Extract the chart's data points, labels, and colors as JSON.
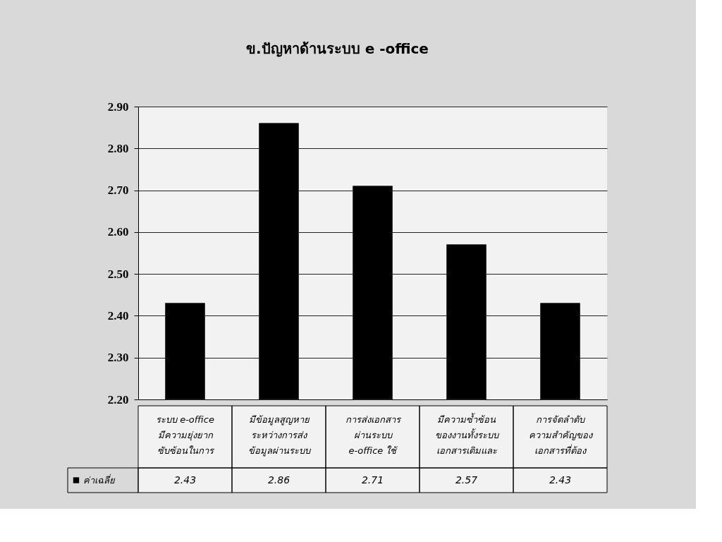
{
  "chart_data": {
    "type": "bar",
    "title": "ข.ปัญหาด้านระบบ e -office",
    "categories": [
      "ระบบ e-office\nมีความยุ่งยาก\nซับซ้อนในการ",
      "มีข้อมูลสูญหาย\nระหว่างการส่ง\nข้อมูลผ่านระบบ",
      "การส่งเอกสาร\nผ่านระบบ\ne-office ใช้",
      "มีความซ้ำซ้อน\nของงานทั้งระบบ\nเอกสารเดิมและ",
      "การจัดลำดับ\nความสำคัญของ\nเอกสารที่ต้อง"
    ],
    "series": [
      {
        "name": "ค่าเฉลี่ย",
        "color": "#000000",
        "values": [
          2.43,
          2.86,
          2.71,
          2.57,
          2.43
        ]
      }
    ],
    "ylim": [
      2.2,
      2.9
    ],
    "yticks": [
      {
        "value": 2.2,
        "label": "2.20"
      },
      {
        "value": 2.3,
        "label": "2.30"
      },
      {
        "value": 2.4,
        "label": "2.40"
      },
      {
        "value": 2.5,
        "label": "2.50"
      },
      {
        "value": 2.6,
        "label": "2.60"
      },
      {
        "value": 2.7,
        "label": "2.70"
      },
      {
        "value": 2.8,
        "label": "2.80"
      },
      {
        "value": 2.9,
        "label": "2.90"
      }
    ],
    "grid": "y",
    "legend": "bottom left",
    "data_labels": true
  }
}
